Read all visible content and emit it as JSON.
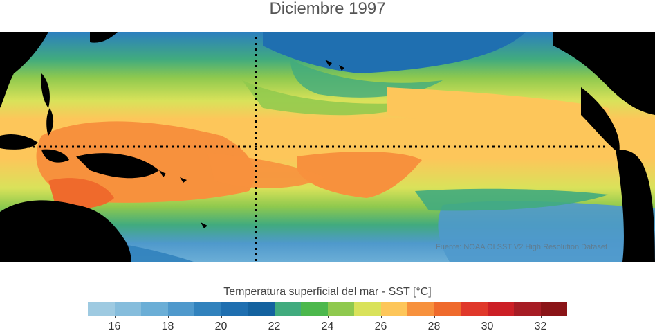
{
  "title": "Diciembre 1997",
  "credit": "Fuente: NOAA OI SST V2 High Resolution Dataset",
  "colorbar": {
    "label": "Temperatura superficial del mar - SST  [°C]",
    "min": 15,
    "max": 33,
    "step": 1,
    "tick_values": [
      16,
      18,
      20,
      22,
      24,
      26,
      28,
      30,
      32
    ],
    "tick_labels": [
      "16",
      "18",
      "20",
      "22",
      "24",
      "26",
      "28",
      "30",
      "32"
    ],
    "colors": [
      "#9ecae1",
      "#86bddc",
      "#6baed6",
      "#4f99cc",
      "#3182bd",
      "#1f6fb0",
      "#14629f",
      "#41ab7e",
      "#4cb84c",
      "#8fc94e",
      "#d9e25a",
      "#fdc65a",
      "#f7913d",
      "#ef6a2c",
      "#e0382a",
      "#cc1f26",
      "#a61c24",
      "#8a1417"
    ]
  },
  "map": {
    "region": "Tropical Pacific Ocean",
    "land_color": "#000000",
    "reference_lines": [
      "equator",
      "180° meridian"
    ]
  }
}
